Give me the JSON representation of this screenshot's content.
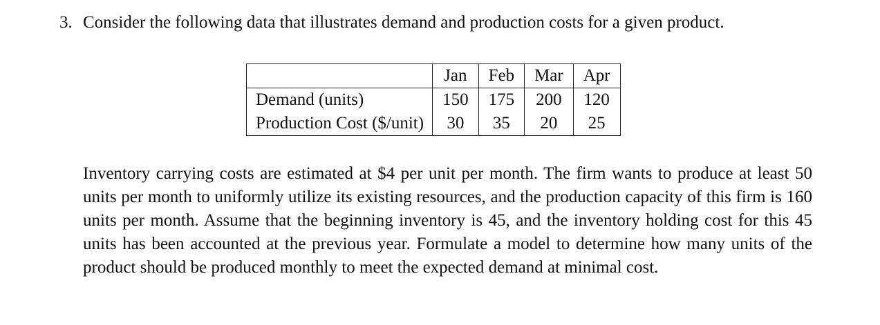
{
  "question": {
    "number": "3.",
    "text": "Consider the following data that illustrates demand and production costs for a given product."
  },
  "table": {
    "headers": [
      "",
      "Jan",
      "Feb",
      "Mar",
      "Apr"
    ],
    "rows": [
      {
        "label": "Demand (units)",
        "values": [
          "150",
          "175",
          "200",
          "120"
        ]
      },
      {
        "label": "Production Cost ($/unit)",
        "values": [
          "30",
          "35",
          "20",
          "25"
        ]
      }
    ]
  },
  "paragraph": "Inventory carrying costs are estimated at $4 per unit per month. The firm wants to produce at least 50 units per month to uniformly utilize its existing resources, and the production capacity of this firm is 160 units per month. Assume that the beginning inventory is 45, and the inventory holding cost for this 45 units has been accounted at the previous year. Formulate a model to determine how many units of the product should be produced monthly to meet the expected demand at minimal cost."
}
